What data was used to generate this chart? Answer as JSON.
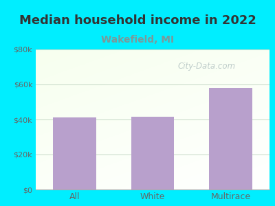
{
  "title": "Median household income in 2022",
  "subtitle": "Wakefield, MI",
  "categories": [
    "All",
    "White",
    "Multirace"
  ],
  "values": [
    41000,
    41500,
    58000
  ],
  "bar_color": "#b8a0cc",
  "title_fontsize": 13,
  "subtitle_fontsize": 10,
  "subtitle_color": "#7a9a9a",
  "tick_label_color": "#666666",
  "ylim": [
    0,
    80000
  ],
  "yticks": [
    0,
    20000,
    40000,
    60000,
    80000
  ],
  "ytick_labels": [
    "$0",
    "$20k",
    "$40k",
    "$60k",
    "$80k"
  ],
  "bg_outer_color": "#00eeff",
  "watermark": "City-Data.com",
  "watermark_color": "#aabbbb",
  "grid_color": "#ccddcc"
}
